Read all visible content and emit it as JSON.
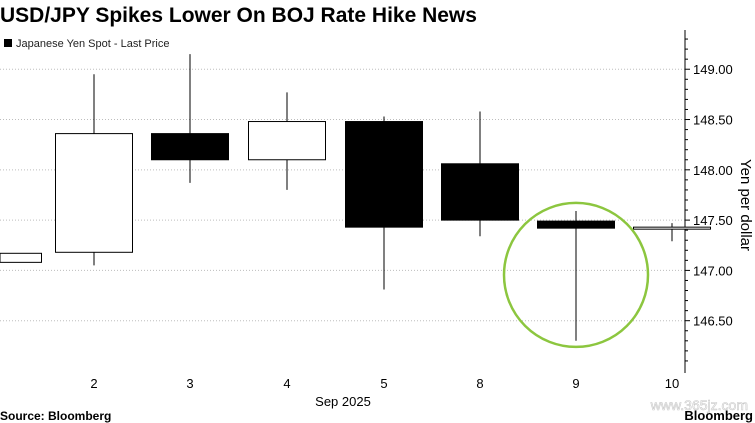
{
  "title": "USD/JPY Spikes Lower On BOJ Rate Hike News",
  "legend": {
    "label": "Japanese Yen Spot - Last Price",
    "swatch_color": "#000000"
  },
  "source": "Source: Bloomberg",
  "brand": "Bloomberg",
  "watermark": "www.365jz.com",
  "colors": {
    "bear_fill": "#000000",
    "bull_fill": "#ffffff",
    "stroke": "#000000",
    "grid": "#bdbdbd",
    "highlight_circle": "#8cc63f"
  },
  "chart_data": {
    "type": "candlestick",
    "xlabel": "Sep 2025",
    "ylabel": "Yen per dollar",
    "ylim": [
      145.98,
      149.39
    ],
    "y_ticks": [
      "149.00",
      "148.50",
      "148.00",
      "147.50",
      "147.00",
      "146.50"
    ],
    "y_tick_values": [
      149.0,
      148.5,
      148.0,
      147.5,
      147.0,
      146.5
    ],
    "x_tick_labels": [
      "2",
      "3",
      "4",
      "5",
      "8",
      "9",
      "10"
    ],
    "candles": [
      {
        "x": "1",
        "open": 147.08,
        "close": 147.17,
        "high": 147.17,
        "low": 147.08
      },
      {
        "x": "2",
        "open": 147.18,
        "close": 148.36,
        "high": 148.95,
        "low": 147.05
      },
      {
        "x": "3",
        "open": 148.36,
        "close": 148.1,
        "high": 149.15,
        "low": 147.87
      },
      {
        "x": "4",
        "open": 148.1,
        "close": 148.48,
        "high": 148.77,
        "low": 147.8
      },
      {
        "x": "5",
        "open": 148.48,
        "close": 147.43,
        "high": 148.53,
        "low": 146.81
      },
      {
        "x": "8",
        "open": 148.06,
        "close": 147.5,
        "high": 148.58,
        "low": 147.34
      },
      {
        "x": "9",
        "open": 147.49,
        "close": 147.42,
        "high": 147.59,
        "low": 146.3
      },
      {
        "x": "10",
        "open": 147.41,
        "close": 147.43,
        "high": 147.47,
        "low": 147.29
      }
    ],
    "highlight": {
      "x": "9"
    },
    "grid": true,
    "legend_position": "top-left"
  }
}
